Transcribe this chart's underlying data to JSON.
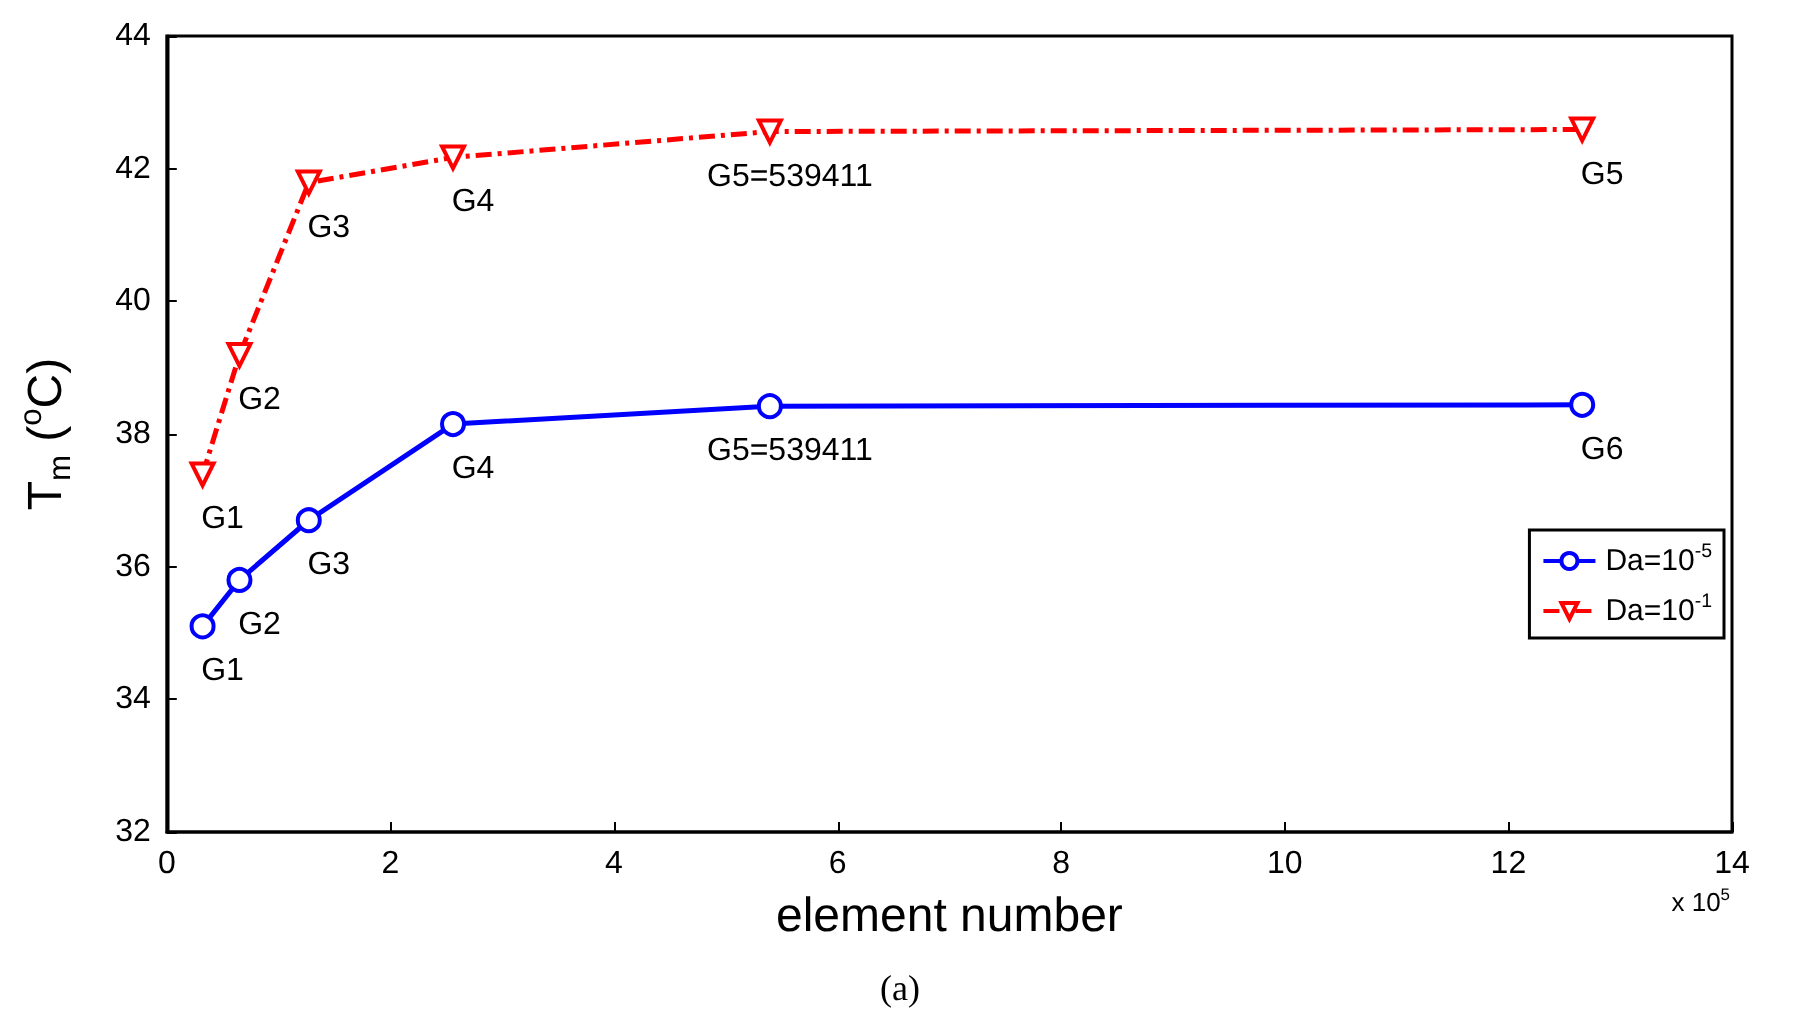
{
  "chart_data": {
    "type": "line",
    "xlabel": "element number",
    "ylabel": "T$_{m}$ ($^{o}$C)",
    "annotations": [
      "x 10$^{5}$",
      "(a)"
    ],
    "xlim": [
      0,
      14
    ],
    "xticks": [
      0,
      2,
      4,
      6,
      8,
      10,
      12,
      14
    ],
    "ylim": [
      32,
      44
    ],
    "yticks": [
      32,
      34,
      36,
      38,
      40,
      42,
      44
    ],
    "grid": false,
    "legend": "right",
    "series": [
      {
        "name": "Da=10$^{-5}$",
        "color": "#0000ff",
        "marker": "circle",
        "line_style": "solid",
        "x": [
          0.32,
          0.65,
          1.27,
          2.56,
          5.39411,
          12.66
        ],
        "values": [
          35.1,
          35.8,
          36.7,
          38.15,
          38.42,
          38.44
        ],
        "value_labels": [
          "G1",
          "G2",
          "G3",
          "G4",
          "G5=539411",
          "G6"
        ]
      },
      {
        "name": "Da=10$^{-1}$",
        "color": "#ff0000",
        "marker": "triangle",
        "line_style": "dashed",
        "x": [
          0.32,
          0.65,
          1.27,
          2.56,
          5.39411,
          12.66
        ],
        "values": [
          37.39,
          39.19,
          41.79,
          42.17,
          42.56,
          42.59
        ],
        "value_labels": [
          "G1",
          "G2",
          "G3",
          "G4",
          "G5=539411",
          "G5"
        ]
      }
    ]
  }
}
